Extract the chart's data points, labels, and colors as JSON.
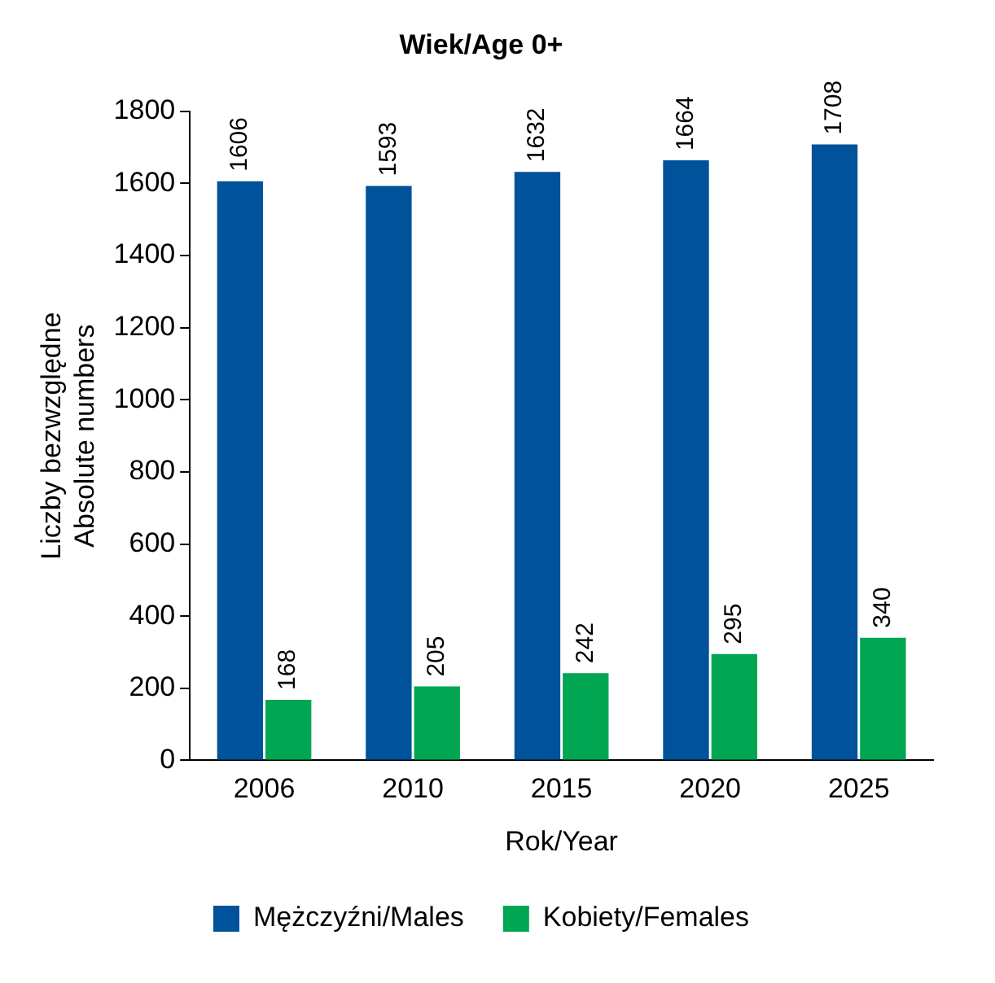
{
  "chart_data": {
    "type": "bar",
    "title": "Wiek/Age 0+",
    "xlabel": "Rok/Year",
    "ylabel": "Liczby bezwzględne\nAbsolute numbers",
    "categories": [
      "2006",
      "2010",
      "2015",
      "2020",
      "2025"
    ],
    "series": [
      {
        "name": "Mężczyźni/Males",
        "color": "#00529b",
        "values": [
          1606,
          1593,
          1632,
          1664,
          1708
        ]
      },
      {
        "name": "Kobiety/Females",
        "color": "#00a651",
        "values": [
          168,
          205,
          242,
          295,
          340
        ]
      }
    ],
    "ylim": [
      0,
      1800
    ],
    "yticks": [
      0,
      200,
      400,
      600,
      800,
      1000,
      1200,
      1400,
      1600,
      1800
    ],
    "grid": false,
    "legend": "bottom",
    "data_labels": true
  }
}
